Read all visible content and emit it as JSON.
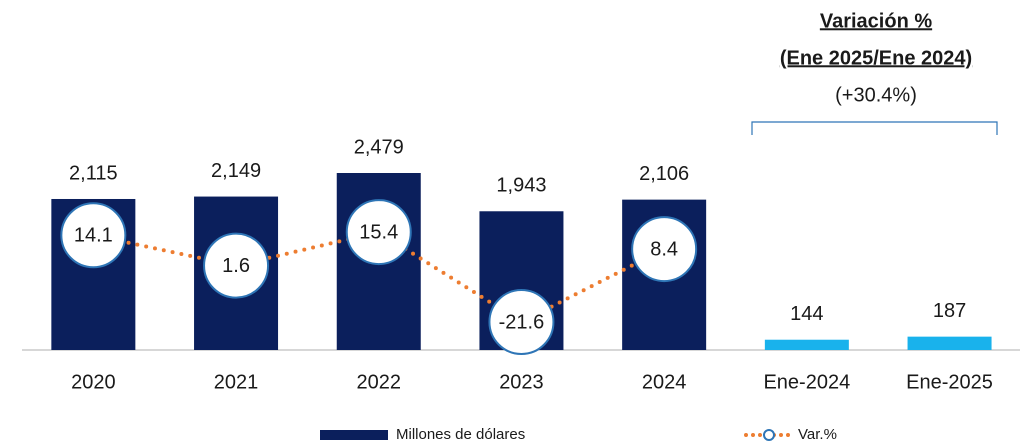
{
  "chart_data": {
    "type": "bar",
    "categories": [
      "2020",
      "2021",
      "2022",
      "2023",
      "2024",
      "Ene-2024",
      "Ene-2025"
    ],
    "series": [
      {
        "name": "Millones de dólares",
        "color": "#0b1f5c",
        "colors": [
          "#0b1f5c",
          "#0b1f5c",
          "#0b1f5c",
          "#0b1f5c",
          "#0b1f5c",
          "#19b2ec",
          "#19b2ec"
        ],
        "values": [
          2115,
          2149,
          2479,
          1943,
          2106,
          144,
          187
        ],
        "value_labels": [
          "2,115",
          "2,149",
          "2,479",
          "1,943",
          "2,106",
          "144",
          "187"
        ]
      },
      {
        "name": "Var.%",
        "type": "line",
        "axis": "y2",
        "color": "#ed7d31",
        "marker_edge": "#2e75b6",
        "values": [
          14.1,
          1.6,
          15.4,
          -21.6,
          8.4,
          null,
          null
        ]
      }
    ],
    "annotations": [
      "Variación %",
      "(Ene 2025/Ene 2024)",
      "(+30.4%)"
    ],
    "ylim": [
      0,
      2500
    ],
    "y2lim": [
      -30,
      30
    ]
  }
}
